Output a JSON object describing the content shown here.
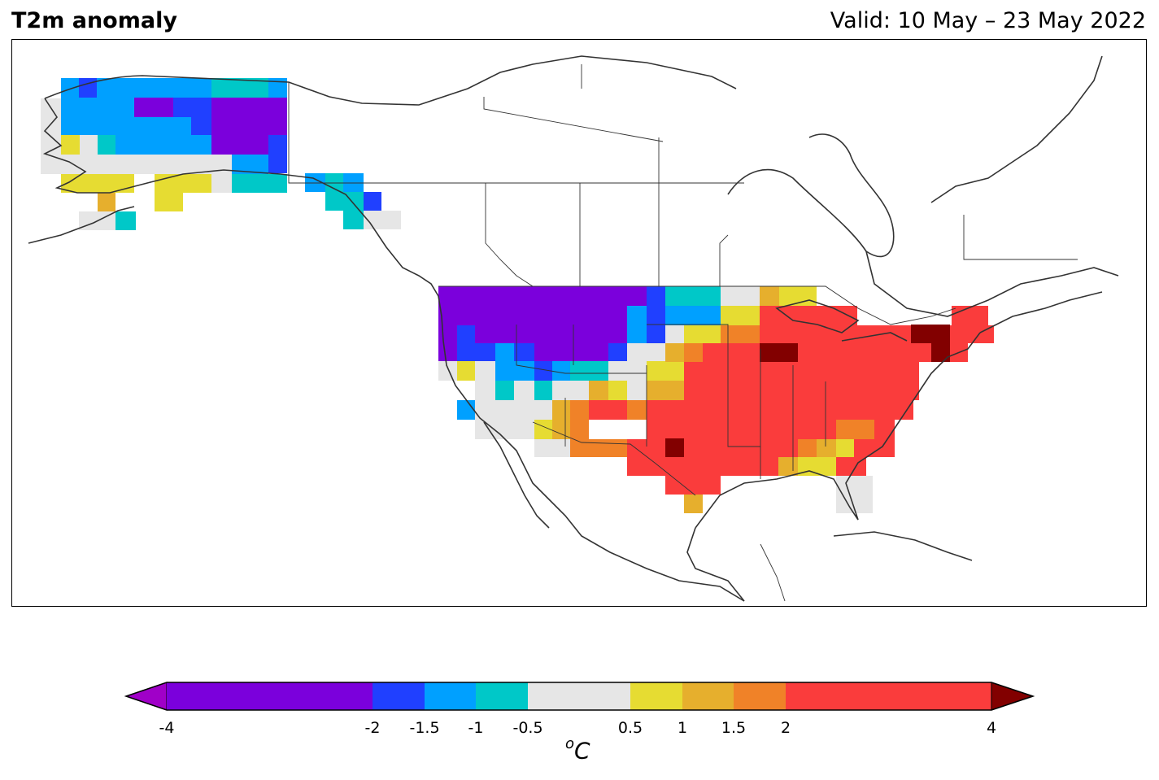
{
  "title": "T2m anomaly",
  "valid": "Valid: 10 May – 23 May 2022",
  "colorbar": {
    "units_sup": "o",
    "units_main": "C",
    "levels": [
      "-4",
      "-2",
      "-1.5",
      "-1",
      "-0.5",
      "0.5",
      "1",
      "1.5",
      "2",
      "4"
    ],
    "bands": [
      {
        "from": -4,
        "to": -2,
        "color": "#7b00dc"
      },
      {
        "from": -2,
        "to": -1.5,
        "color": "#2040ff"
      },
      {
        "from": -1.5,
        "to": -1,
        "color": "#00a0ff"
      },
      {
        "from": -1,
        "to": -0.5,
        "color": "#00c8c8"
      },
      {
        "from": -0.5,
        "to": 0.5,
        "color": "#e6e6e6"
      },
      {
        "from": 0.5,
        "to": 1,
        "color": "#e6dc32"
      },
      {
        "from": 1,
        "to": 1.5,
        "color": "#e6af2d"
      },
      {
        "from": 1.5,
        "to": 2,
        "color": "#f08228"
      },
      {
        "from": 2,
        "to": 4,
        "color": "#fa3c3c"
      }
    ],
    "under_color": "#a000c8",
    "over_color": "#820000"
  }
}
